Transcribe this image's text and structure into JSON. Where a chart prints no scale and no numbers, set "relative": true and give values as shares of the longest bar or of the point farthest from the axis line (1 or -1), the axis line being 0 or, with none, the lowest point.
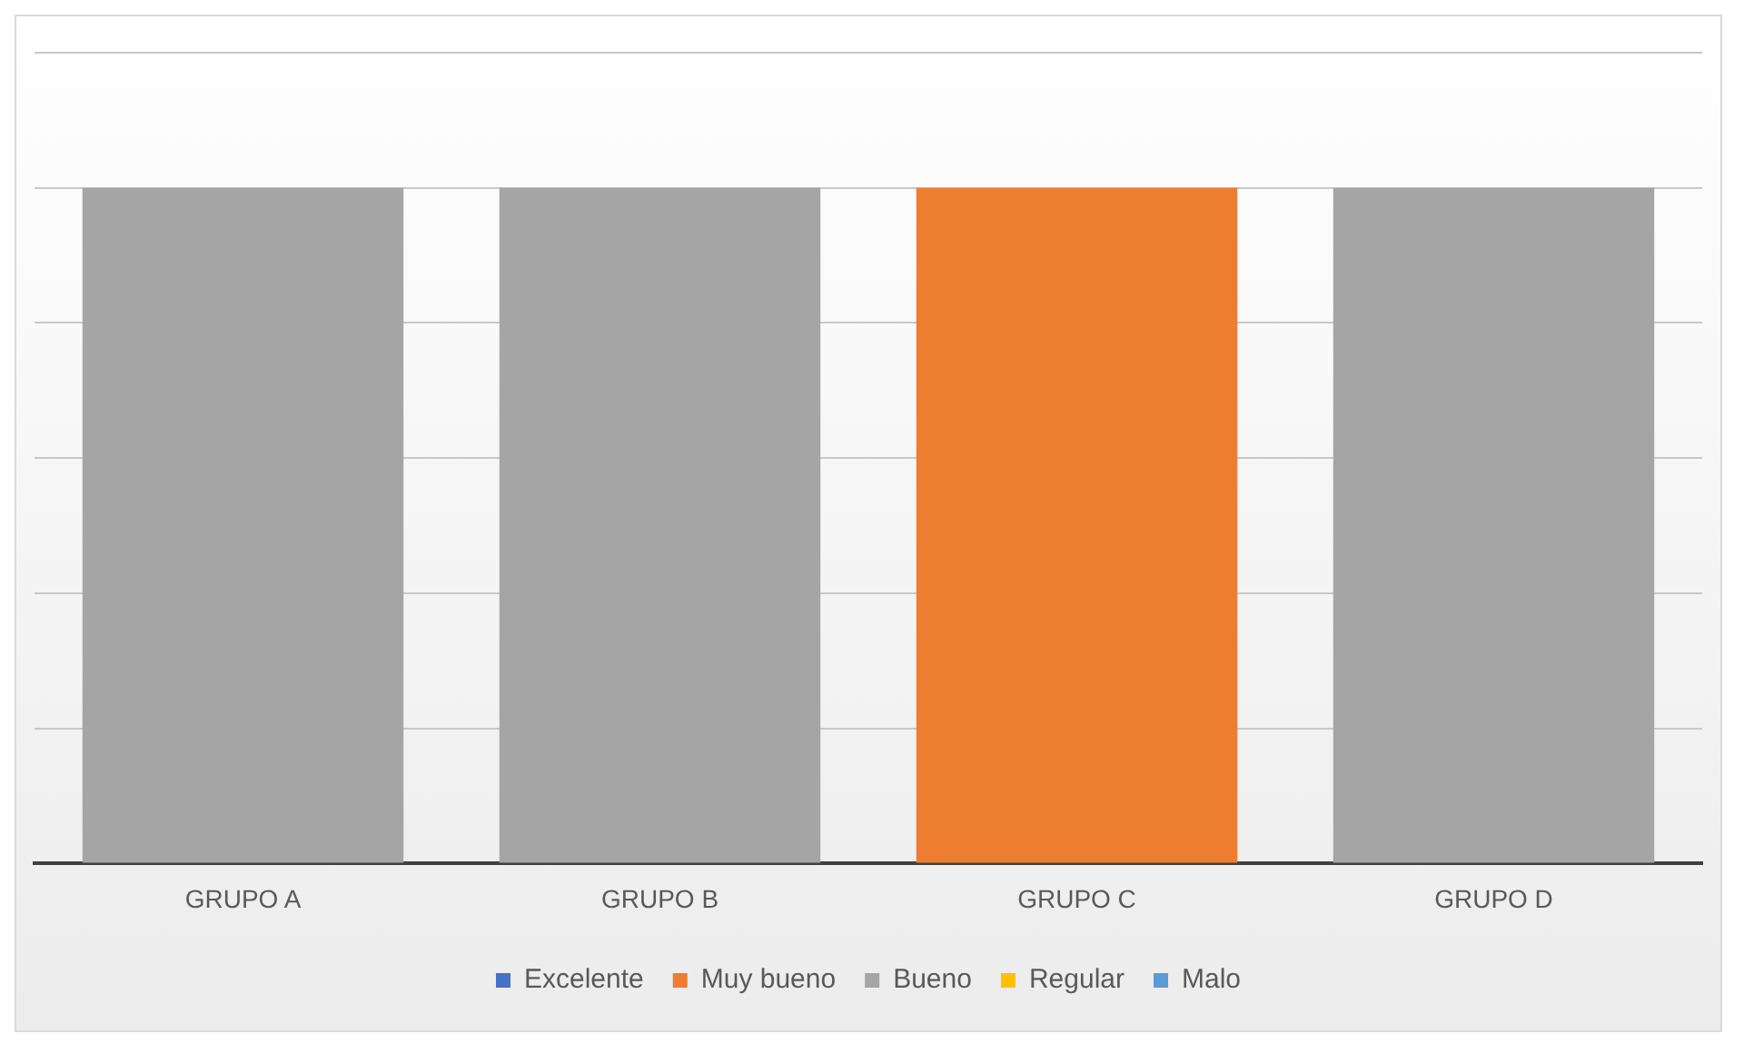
{
  "chart_data": {
    "type": "bar",
    "stacked": true,
    "relative": true,
    "categories": [
      "GRUPO A",
      "GRUPO B",
      "GRUPO C",
      "GRUPO D"
    ],
    "series": [
      {
        "name": "Excelente",
        "color": "#4472c4",
        "values": [
          null,
          null,
          null,
          null
        ]
      },
      {
        "name": "Muy bueno",
        "color": "#ed7d31",
        "values": [
          null,
          null,
          1,
          null
        ]
      },
      {
        "name": "Bueno",
        "color": "#a5a5a5",
        "values": [
          1,
          1,
          null,
          1
        ]
      },
      {
        "name": "Regular",
        "color": "#ffc000",
        "values": [
          null,
          null,
          null,
          null
        ]
      },
      {
        "name": "Malo",
        "color": "#5b9bd5",
        "values": [
          null,
          null,
          null,
          null
        ]
      }
    ],
    "grid": "y",
    "legend": "bottom"
  }
}
